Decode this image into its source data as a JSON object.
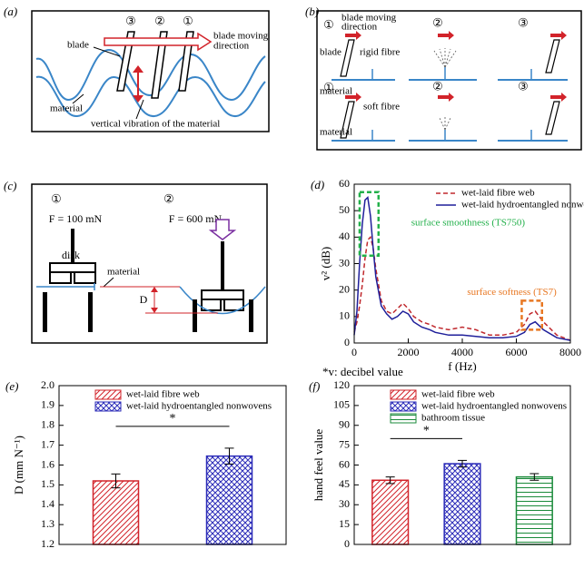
{
  "panels": [
    {
      "label": "(a)",
      "numbers": [
        "③",
        "②",
        "①"
      ],
      "blade": "blade",
      "direction": [
        "blade moving",
        "direction"
      ],
      "material": "material",
      "vibration": "vertical vibration of the material"
    },
    {
      "label": "(b)",
      "top_numbers": [
        "①",
        "②",
        "③"
      ],
      "direction": [
        "blade moving",
        "direction"
      ],
      "blade": "blade",
      "fibre_top": "rigid fibre",
      "material_top": "material",
      "bottom_numbers": [
        "①",
        "②",
        "③"
      ],
      "fibre_bottom": "soft fibre",
      "material_bottom": "material"
    },
    {
      "label": "(c)",
      "numbers": [
        "①",
        "②"
      ],
      "force_1": "F = 100 mN",
      "force_2": "F = 600 mN",
      "disk": "disk",
      "material": "material",
      "deflection": "D"
    }
  ],
  "chart_data": [
    {
      "type": "line",
      "panel_label": "(d)",
      "xlabel": "f (Hz)",
      "ylabel": "v² (dB)",
      "note": "*v: decibel value",
      "x": [
        0,
        100,
        200,
        300,
        400,
        500,
        600,
        700,
        800,
        1000,
        1200,
        1400,
        1600,
        1800,
        2000,
        2200,
        2500,
        2800,
        3000,
        3500,
        4000,
        4500,
        5000,
        5500,
        6000,
        6300,
        6500,
        6700,
        7000,
        7500,
        8000
      ],
      "xlim": [
        0,
        8000
      ],
      "xticks": [
        0,
        2000,
        4000,
        6000,
        8000
      ],
      "ylim": [
        0,
        60
      ],
      "yticks": [
        0,
        10,
        20,
        30,
        40,
        50,
        60
      ],
      "legend": "upper right",
      "series": [
        {
          "name": "wet-laid fibre web",
          "color": "#c0282d",
          "dash": "dashed",
          "values": [
            4,
            8,
            14,
            22,
            32,
            39,
            40,
            36,
            28,
            16,
            12,
            11,
            13,
            15,
            13,
            10,
            8,
            7,
            6,
            5,
            6,
            5,
            3,
            3,
            4,
            7,
            11,
            12,
            8,
            3,
            1
          ]
        },
        {
          "name": "wet-laid hydroentangled nonwovens",
          "color": "#1f1f9a",
          "dash": "solid",
          "values": [
            3,
            12,
            30,
            45,
            54,
            55,
            48,
            36,
            25,
            14,
            11,
            9,
            10,
            12,
            11,
            8,
            6,
            5,
            4,
            3,
            3,
            2.5,
            2,
            2,
            2.5,
            4,
            7,
            8,
            5,
            2,
            1
          ]
        }
      ],
      "annotations": [
        {
          "text": "surface smoothness (TS750)",
          "color": "#22b04a",
          "x": [
            200,
            900
          ],
          "y": [
            33,
            57
          ],
          "label_position": "right"
        },
        {
          "text": "surface softness (TS7)",
          "color": "#e87722",
          "x": [
            6200,
            6950
          ],
          "y": [
            5,
            16
          ],
          "label_position": "above"
        }
      ]
    },
    {
      "type": "bar",
      "panel_label": "(e)",
      "ylabel": "D (mm N⁻¹)",
      "ylim": [
        1.2,
        2
      ],
      "yticks": [
        1.2,
        1.3,
        1.4,
        1.5,
        1.6,
        1.7,
        1.8,
        1.9,
        {
          "value": 2,
          "label": "2.0"
        }
      ],
      "legend": "upper left",
      "series": [
        {
          "name": "wet-laid fibre web",
          "color": "#d2232a",
          "hatch": "diagonal",
          "values": [
            1.52
          ],
          "errors": [
            0.035
          ]
        },
        {
          "name": "wet-laid hydroentangled nonwovens",
          "color": "#2b2bb8",
          "hatch": "cross",
          "values": [
            1.645
          ],
          "errors": [
            0.04
          ]
        }
      ],
      "significance": {
        "between": [
          0,
          1
        ],
        "label": "*"
      }
    },
    {
      "type": "bar",
      "panel_label": "(f)",
      "ylabel": "hand feel value",
      "ylim": [
        0,
        120
      ],
      "yticks": [
        0,
        15,
        30,
        45,
        60,
        75,
        90,
        105,
        120
      ],
      "legend": "upper left",
      "series": [
        {
          "name": "wet-laid fibre web",
          "color": "#d2232a",
          "hatch": "diagonal",
          "values": [
            48.5
          ],
          "errors": [
            2.5
          ]
        },
        {
          "name": "wet-laid hydroentangled nonwovens",
          "color": "#2b2bb8",
          "hatch": "cross",
          "values": [
            61
          ],
          "errors": [
            2.5
          ]
        },
        {
          "name": "bathroom tissue",
          "color": "#1a8a3a",
          "hatch": "horizontal",
          "values": [
            51
          ],
          "errors": [
            2.5
          ]
        }
      ],
      "significance": {
        "between": [
          0,
          1
        ],
        "label": "*"
      }
    }
  ]
}
